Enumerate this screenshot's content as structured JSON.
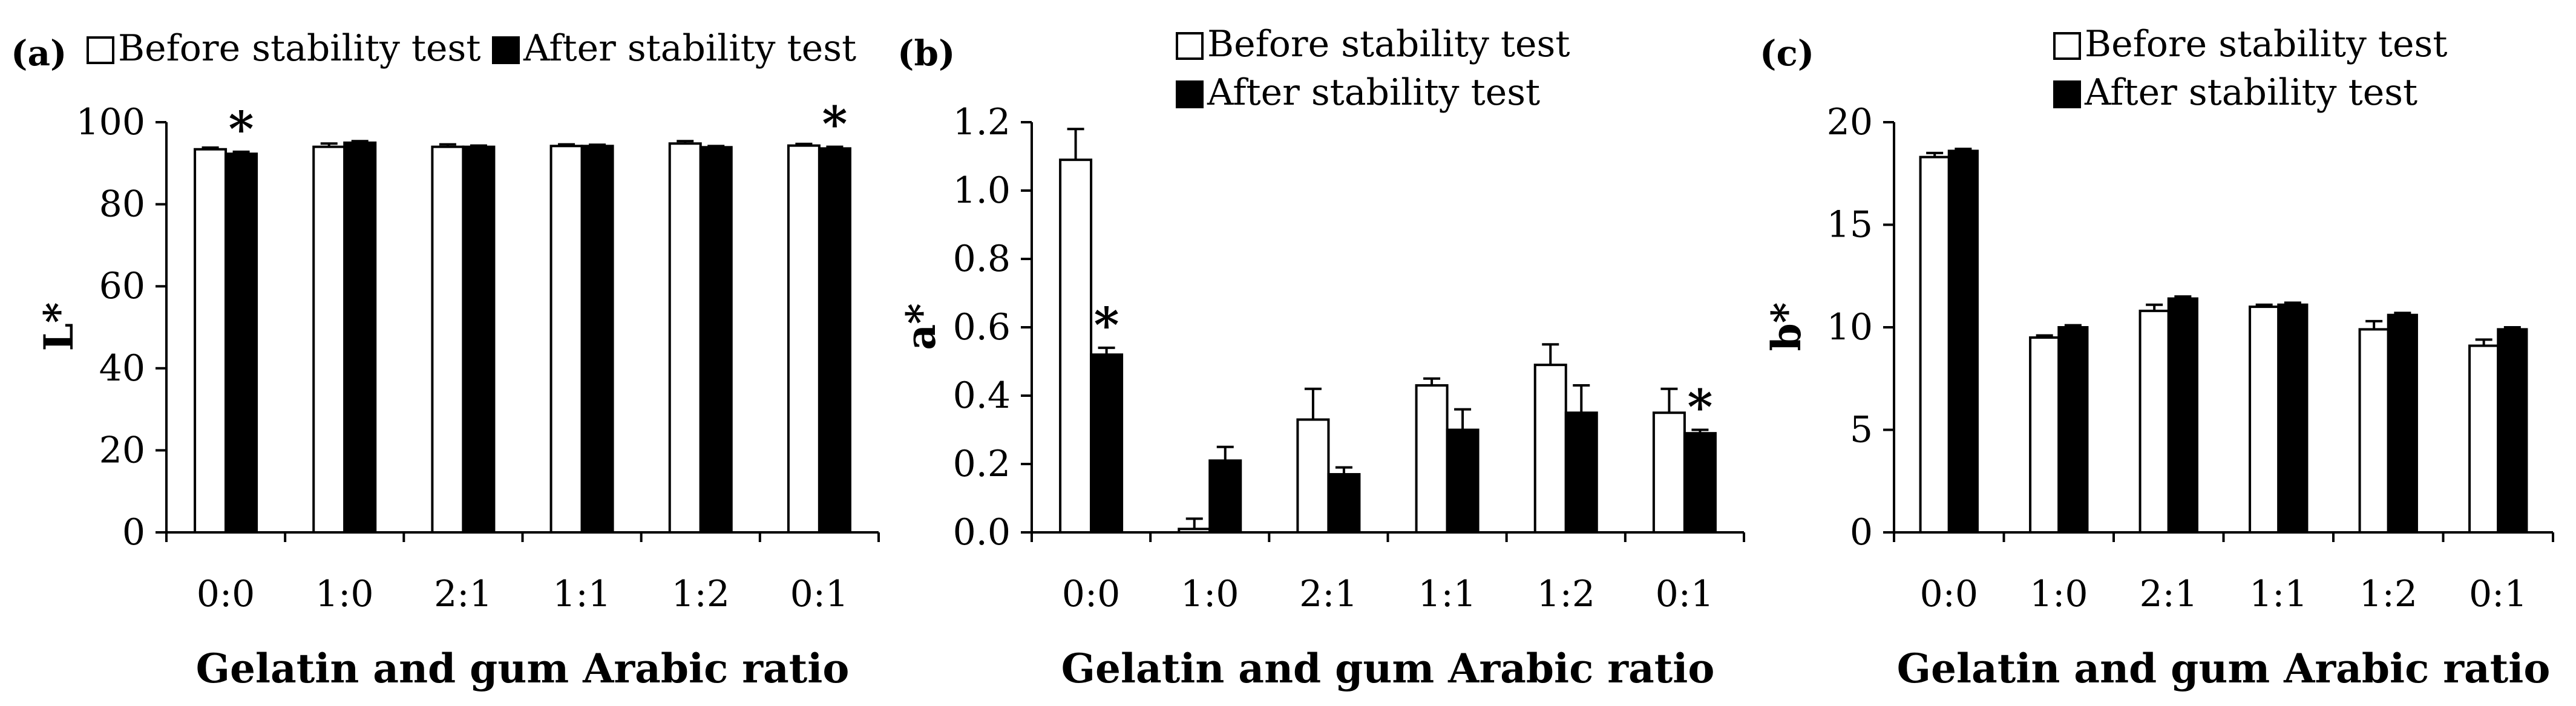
{
  "colors": {
    "before": "#ffffff",
    "after": "#000000",
    "axis": "#000000"
  },
  "series_labels": {
    "before": "Before stability test",
    "after": "After stability test"
  },
  "chart_data": [
    {
      "type": "bar",
      "panel": "(a)",
      "ylabel": "L*",
      "xlabel": "Gelatin and gum Arabic ratio",
      "categories": [
        "0:0",
        "1:0",
        "2:1",
        "1:1",
        "1:2",
        "0:1"
      ],
      "ylim": [
        0,
        100
      ],
      "yticks": [
        0,
        20,
        40,
        60,
        80,
        100
      ],
      "ytick_labels": [
        "0",
        "20",
        "40",
        "60",
        "80",
        "100"
      ],
      "legend_placement": "top",
      "series": [
        {
          "name": "Before stability test",
          "values": [
            93.4,
            94.0,
            94.0,
            94.2,
            94.8,
            94.3
          ],
          "errors": [
            0.4,
            0.8,
            0.6,
            0.4,
            0.6,
            0.4
          ]
        },
        {
          "name": "After stability test",
          "values": [
            92.3,
            95.0,
            94.0,
            94.2,
            93.9,
            93.6
          ],
          "errors": [
            0.5,
            0.4,
            0.3,
            0.3,
            0.3,
            0.4
          ]
        }
      ],
      "annotations": [
        {
          "category": "0:0",
          "text": "*"
        },
        {
          "category": "0:1",
          "text": "*"
        }
      ]
    },
    {
      "type": "bar",
      "panel": "(b)",
      "ylabel": "a*",
      "xlabel": "Gelatin and gum Arabic ratio",
      "categories": [
        "0:0",
        "1:0",
        "2:1",
        "1:1",
        "1:2",
        "0:1"
      ],
      "ylim": [
        0,
        1.2
      ],
      "yticks": [
        0,
        0.2,
        0.4,
        0.6,
        0.8,
        1.0,
        1.2
      ],
      "ytick_labels": [
        "0.0",
        "0.2",
        "0.4",
        "0.6",
        "0.8",
        "1.0",
        "1.2"
      ],
      "legend_placement": "top-center",
      "series": [
        {
          "name": "Before stability test",
          "values": [
            1.09,
            0.01,
            0.33,
            0.43,
            0.49,
            0.35
          ],
          "errors": [
            0.09,
            0.03,
            0.09,
            0.02,
            0.06,
            0.07
          ]
        },
        {
          "name": "After stability test",
          "values": [
            0.52,
            0.21,
            0.17,
            0.3,
            0.35,
            0.29
          ],
          "errors": [
            0.02,
            0.04,
            0.02,
            0.06,
            0.08,
            0.01
          ]
        }
      ],
      "annotations": [
        {
          "category": "0:0",
          "text": "*"
        },
        {
          "category": "0:1",
          "text": "*"
        }
      ]
    },
    {
      "type": "bar",
      "panel": "(c)",
      "ylabel": "b*",
      "xlabel": "Gelatin and gum Arabic ratio",
      "categories": [
        "0:0",
        "1:0",
        "2:1",
        "1:1",
        "1:2",
        "0:1"
      ],
      "ylim": [
        0,
        20
      ],
      "yticks": [
        0,
        5,
        10,
        15,
        20
      ],
      "ytick_labels": [
        "0",
        "5",
        "10",
        "15",
        "20"
      ],
      "legend_placement": "top-center",
      "series": [
        {
          "name": "Before stability test",
          "values": [
            18.3,
            9.5,
            10.8,
            11.0,
            9.9,
            9.1
          ],
          "errors": [
            0.2,
            0.1,
            0.3,
            0.1,
            0.4,
            0.3
          ]
        },
        {
          "name": "After stability test",
          "values": [
            18.6,
            10.0,
            11.4,
            11.1,
            10.6,
            9.9
          ],
          "errors": [
            0.1,
            0.1,
            0.1,
            0.1,
            0.1,
            0.1
          ]
        }
      ],
      "annotations": []
    }
  ]
}
